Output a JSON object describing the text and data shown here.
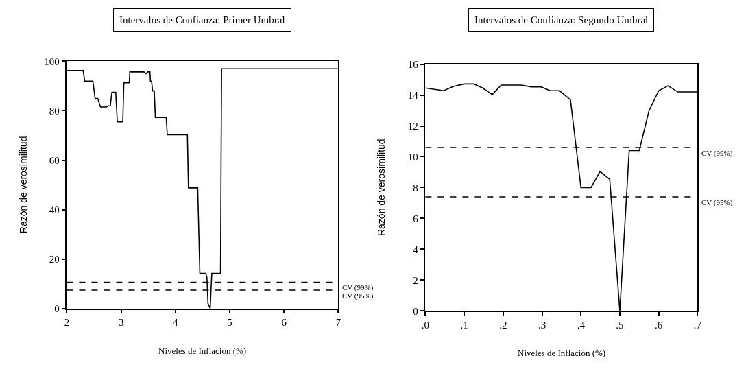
{
  "chart_data": [
    {
      "type": "line",
      "title": "Intervalos de Confianza: Primer Umbral",
      "xlabel": "Niveles de Inflación (%)",
      "ylabel": "Razón de verosimilitud",
      "x": [
        2,
        2.3,
        2.33,
        2.48,
        2.52,
        2.57,
        2.62,
        2.73,
        2.76,
        2.8,
        2.83,
        2.9,
        2.93,
        3.03,
        3.05,
        3.15,
        3.16,
        3.42,
        3.46,
        3.49,
        3.53,
        3.54,
        3.56,
        3.58,
        3.61,
        3.63,
        3.83,
        3.85,
        4.22,
        4.24,
        4.41,
        4.45,
        4.56,
        4.58,
        4.6,
        4.64,
        4.67,
        4.83,
        4.85,
        7
      ],
      "series": [
        {
          "color": "#000000",
          "values": [
            96.3,
            96.3,
            92,
            92,
            85,
            85,
            81.5,
            81.5,
            82,
            82,
            87.5,
            87.5,
            75.5,
            75.5,
            91.3,
            91.3,
            95.7,
            95.7,
            95,
            95.7,
            95.7,
            92,
            92,
            88,
            88,
            77.3,
            77.3,
            70.3,
            70.3,
            48.8,
            48.8,
            14.2,
            14.2,
            12.5,
            2,
            0,
            14.2,
            14.2,
            97,
            97
          ]
        }
      ],
      "xlim": [
        2,
        7
      ],
      "xticks": [
        2,
        3,
        4,
        5,
        6,
        7
      ],
      "ylim": [
        0,
        100
      ],
      "yticks": [
        0,
        20,
        40,
        60,
        80,
        100
      ],
      "ref_lines": [
        {
          "axis": "y",
          "value": 10.6,
          "label": "CV (99%)",
          "line_style": "dashed",
          "color": "#000000"
        },
        {
          "axis": "y",
          "value": 7.4,
          "label": "CV (95%)",
          "line_style": "dashed",
          "color": "#000000"
        }
      ],
      "marker": "none",
      "line_style": "solid"
    },
    {
      "type": "line",
      "title": "Intervalos de Confianza: Segundo Umbral",
      "xlabel": "Niveles de Inflación (%)",
      "ylabel": "Razón de verosimilitud",
      "x": [
        0,
        0.047,
        0.072,
        0.1,
        0.124,
        0.147,
        0.172,
        0.195,
        0.246,
        0.272,
        0.297,
        0.321,
        0.345,
        0.373,
        0.4,
        0.426,
        0.449,
        0.474,
        0.5,
        0.524,
        0.55,
        0.575,
        0.6,
        0.624,
        0.649,
        0.7
      ],
      "series": [
        {
          "color": "#000000",
          "values": [
            14.46,
            14.28,
            14.56,
            14.72,
            14.72,
            14.46,
            14.03,
            14.65,
            14.65,
            14.53,
            14.53,
            14.28,
            14.28,
            13.7,
            8.0,
            8.0,
            9.04,
            8.54,
            0,
            10.4,
            10.4,
            12.98,
            14.28,
            14.6,
            14.2,
            14.2
          ]
        }
      ],
      "xlim": [
        0,
        0.7
      ],
      "xticks": [
        {
          "value": 0,
          "label": ".0"
        },
        {
          "value": 0.1,
          "label": ".1"
        },
        {
          "value": 0.2,
          "label": ".2"
        },
        {
          "value": 0.3,
          "label": ".3"
        },
        {
          "value": 0.4,
          "label": ".4"
        },
        {
          "value": 0.5,
          "label": ".5"
        },
        {
          "value": 0.6,
          "label": ".6"
        },
        {
          "value": 0.7,
          "label": ".7"
        }
      ],
      "ylim": [
        0,
        16
      ],
      "yticks": [
        0,
        2,
        4,
        6,
        8,
        10,
        12,
        14,
        16
      ],
      "ref_lines": [
        {
          "axis": "y",
          "value": 10.6,
          "label": "CV (99%)",
          "line_style": "dashed",
          "color": "#000000"
        },
        {
          "axis": "y",
          "value": 7.4,
          "label": "CV (95%)",
          "line_style": "dashed",
          "color": "#000000"
        }
      ],
      "marker": "none",
      "line_style": "solid"
    }
  ]
}
